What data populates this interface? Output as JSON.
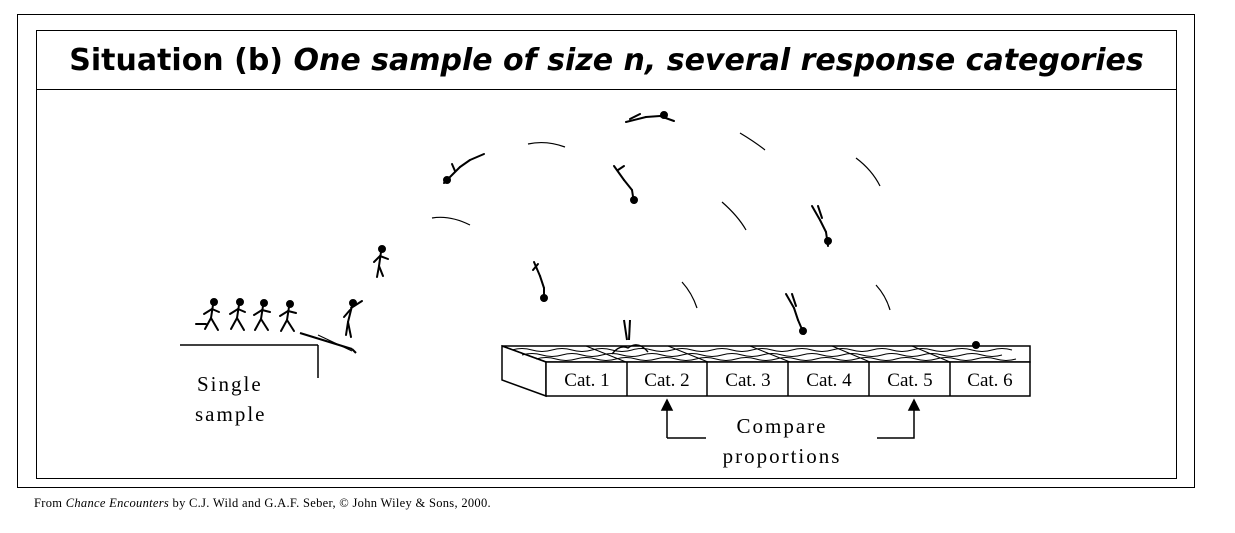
{
  "title": {
    "prefix": "Situation (b)",
    "italic": "One sample of size n, several response categories"
  },
  "labels": {
    "single_sample_line1": "Single",
    "single_sample_line2": "sample",
    "compare_line1": "Compare",
    "compare_line2": "proportions"
  },
  "categories": [
    "Cat. 1",
    "Cat. 2",
    "Cat. 3",
    "Cat. 4",
    "Cat. 5",
    "Cat. 6"
  ],
  "caption": {
    "prefix": "From",
    "book": "Chance Encounters",
    "rest": "by C.J. Wild and G.A.F. Seber, © John Wiley & Sons, 2000."
  }
}
